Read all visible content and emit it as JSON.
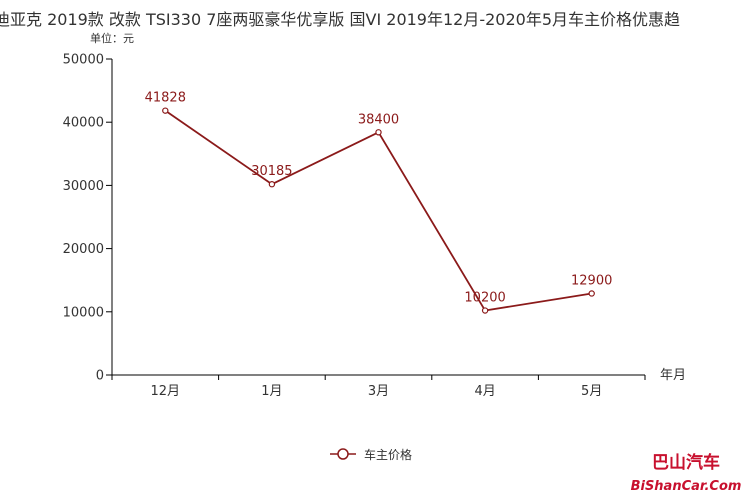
{
  "title": "迪亚克 2019款 改款 TSI330 7座两驱豪华优享版 国VI 2019年12月-2020年5月车主价格优惠趋",
  "colors": {
    "series": "#8b1a1a",
    "axis": "#000000",
    "text": "#333333"
  },
  "chart_data": {
    "type": "line",
    "title": "迪亚克 2019款 改款 TSI330 7座两驱豪华优享版 国VI 2019年12月-2020年5月车主价格优惠趋",
    "ylabel": "单位：元",
    "xlabel": "年月",
    "categories": [
      "12月",
      "1月",
      "3月",
      "4月",
      "5月"
    ],
    "series": [
      {
        "name": "车主价格",
        "values": [
          41828,
          30185,
          38400,
          10200,
          12900
        ]
      }
    ],
    "ylim": [
      0,
      50000
    ],
    "yticks": [
      "0",
      "10000",
      "20000",
      "30000",
      "40000",
      "50000"
    ],
    "grid": false,
    "legend_position": "bottom"
  },
  "legend": {
    "label": "车主价格"
  },
  "watermark": {
    "line1": "巴山汽车",
    "line2": "BiShanCar.Com"
  }
}
